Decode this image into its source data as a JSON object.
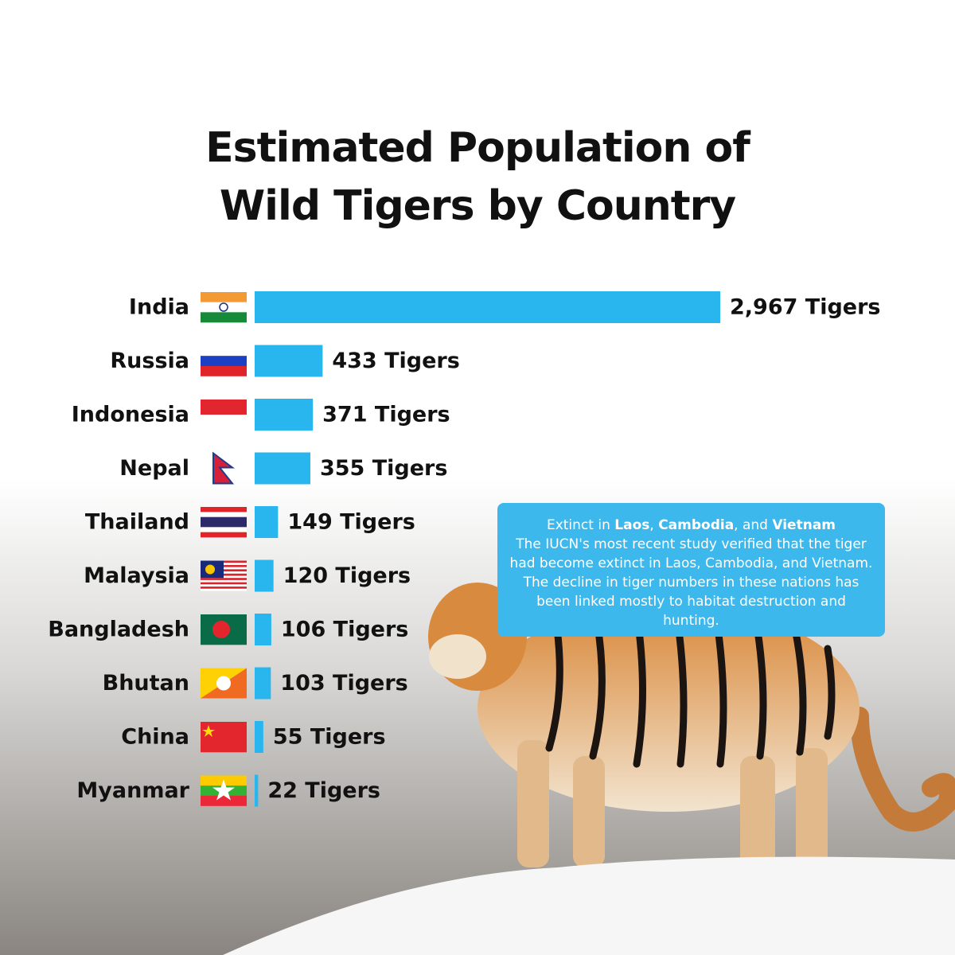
{
  "chart_data": {
    "type": "bar",
    "orientation": "horizontal",
    "title": "Estimated Population of Wild Tigers by Country",
    "categories": [
      "India",
      "Russia",
      "Indonesia",
      "Nepal",
      "Thailand",
      "Malaysia",
      "Bangladesh",
      "Bhutan",
      "China",
      "Myanmar"
    ],
    "values": [
      2967,
      433,
      371,
      355,
      149,
      120,
      106,
      103,
      55,
      22
    ],
    "value_labels": [
      "2,967 Tigers",
      "433 Tigers",
      "371 Tigers",
      "355 Tigers",
      "149 Tigers",
      "120 Tigers",
      "106 Tigers",
      "103 Tigers",
      "55 Tigers",
      "22 Tigers"
    ],
    "color": "#29b5ee",
    "annotation": {
      "heading": [
        "Extinct in ",
        "Laos",
        ", ",
        "Cambodia",
        ", and ",
        "Vietnam"
      ],
      "text": "The IUCN's most recent study verified that the tiger had become extinct in Laos, Cambodia, and Vietnam. The decline in tiger numbers in these nations has been linked mostly to habitat destruction and hunting."
    }
  }
}
